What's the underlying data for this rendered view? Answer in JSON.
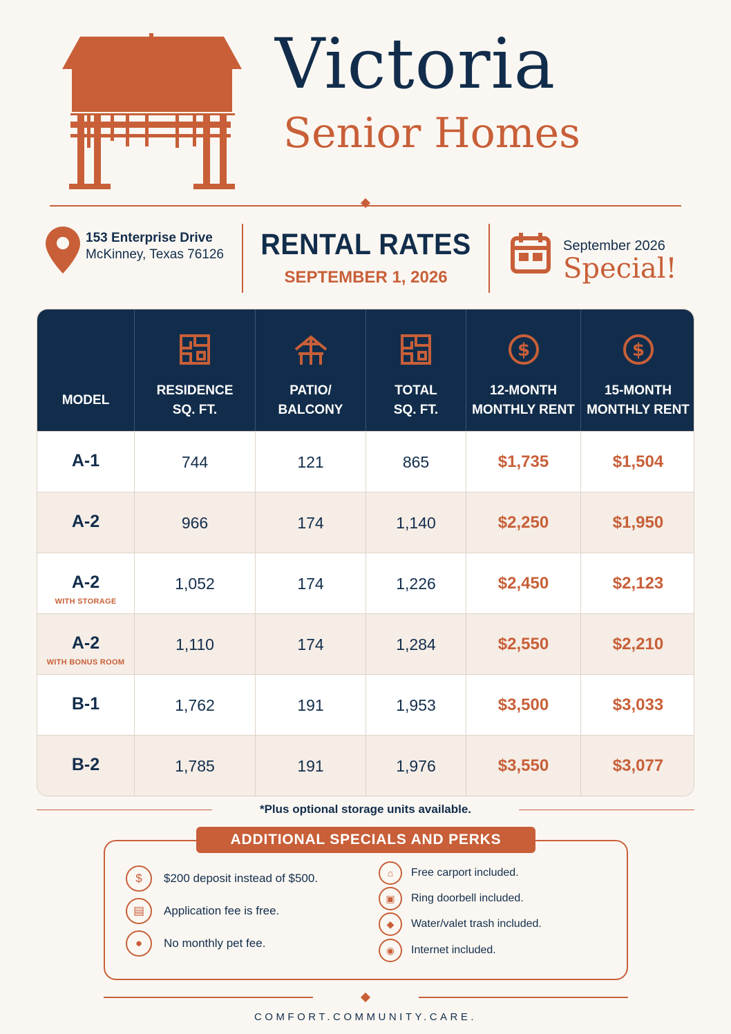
{
  "brand": {
    "name": "Victoria",
    "subtitle": "Senior Homes",
    "colors": {
      "navy": "#122d4b",
      "accent": "#c85f38",
      "background": "#faf7f2",
      "row_alt": "#f5ede6"
    },
    "logo_icon": "house-on-posts-icon"
  },
  "address": {
    "icon": "map-pin-icon",
    "line1": "153 Enterprise Drive",
    "line2": "McKinney, Texas 76126"
  },
  "rates": {
    "title": "RENTAL RATES",
    "date": "SEPTEMBER 1, 2026"
  },
  "special": {
    "icon": "calendar-icon",
    "month": "September 2026",
    "word": "Special!"
  },
  "table": {
    "headers": [
      {
        "label1": "MODEL",
        "label2": "",
        "icon": ""
      },
      {
        "label1": "RESIDENCE",
        "label2": "SQ. FT.",
        "icon": "floorplan-icon"
      },
      {
        "label1": "PATIO/",
        "label2": "BALCONY",
        "icon": "patio-chair-icon"
      },
      {
        "label1": "TOTAL",
        "label2": "SQ. FT.",
        "icon": "floorplan-icon"
      },
      {
        "label1": "12-MONTH",
        "label2": "MONTHLY RENT",
        "icon": "dollar-circle-icon"
      },
      {
        "label1": "15-MONTH",
        "label2": "MONTHLY RENT",
        "icon": "dollar-circle-icon"
      }
    ],
    "rows": [
      {
        "model": "A-1",
        "note": "",
        "residence": "744",
        "patio": "121",
        "total": "865",
        "rent12": "$1,735",
        "rent15": "$1,504"
      },
      {
        "model": "A-2",
        "note": "",
        "residence": "966",
        "patio": "174",
        "total": "1,140",
        "rent12": "$2,250",
        "rent15": "$1,950"
      },
      {
        "model": "A-2",
        "note": "WITH STORAGE",
        "residence": "1,052",
        "patio": "174",
        "total": "1,226",
        "rent12": "$2,450",
        "rent15": "$2,123"
      },
      {
        "model": "A-2",
        "note": "WITH BONUS ROOM",
        "residence": "1,110",
        "patio": "174",
        "total": "1,284",
        "rent12": "$2,550",
        "rent15": "$2,210"
      },
      {
        "model": "B-1",
        "note": "",
        "residence": "1,762",
        "patio": "191",
        "total": "1,953",
        "rent12": "$3,500",
        "rent15": "$3,033"
      },
      {
        "model": "B-2",
        "note": "",
        "residence": "1,785",
        "patio": "191",
        "total": "1,976",
        "rent12": "$3,550",
        "rent15": "$3,077"
      }
    ],
    "note": "*Plus optional storage units available."
  },
  "perks": {
    "title": "ADDITIONAL SPECIALS AND PERKS",
    "left": [
      {
        "glyph": "$",
        "icon": "dollar-icon",
        "text": "$200 deposit instead of $500."
      },
      {
        "glyph": "▤",
        "icon": "document-icon",
        "text": "Application fee is free."
      },
      {
        "glyph": "●",
        "icon": "paw-icon",
        "text": "No monthly pet fee."
      }
    ],
    "right": [
      {
        "glyph": "⌂",
        "icon": "carport-icon",
        "text": "Free carport included."
      },
      {
        "glyph": "▣",
        "icon": "doorbell-icon",
        "text": "Ring doorbell included."
      },
      {
        "glyph": "◆",
        "icon": "water-drop-icon",
        "text": "Water/valet trash included."
      },
      {
        "glyph": "◉",
        "icon": "wifi-icon",
        "text": "Internet included."
      }
    ]
  },
  "footer": {
    "tagline": "COMFORT.COMMUNITY.CARE."
  }
}
